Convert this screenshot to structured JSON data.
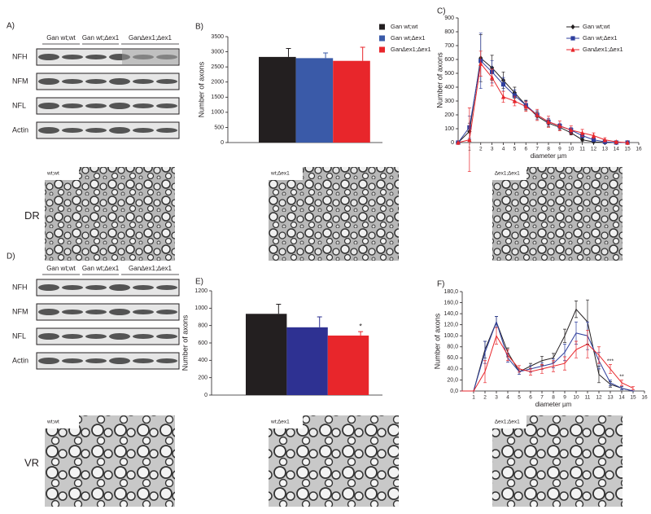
{
  "panels": {
    "blots": [
      {
        "label": "A)",
        "groups": [
          "Gan wt;wt",
          "Gan wt;∆ex1",
          "Gan∆ex1;∆ex1"
        ],
        "rows": [
          "NFH",
          "NFM",
          "NFL",
          "Actin"
        ]
      },
      {
        "label": "D)",
        "groups": [
          "Gan wt;wt",
          "Gan wt;∆ex1",
          "Gan∆ex1;∆ex1"
        ],
        "rows": [
          "NFH",
          "NFM",
          "NFL",
          "Actin"
        ]
      }
    ],
    "micrographs": [
      {
        "label": "DR",
        "images": [
          "wt;wt",
          "wt;∆ex1",
          "∆ex1;∆ex1"
        ]
      },
      {
        "label": "VR",
        "images": [
          "wt;wt",
          "wt;∆ex1",
          "∆ex1;∆ex1"
        ]
      }
    ]
  },
  "chart_data": [
    {
      "type": "bar",
      "label": "B)",
      "ylabel": "Number of axons",
      "categories": [
        null
      ],
      "series": [
        {
          "name": "Gan wt;wt",
          "color": "#231f20",
          "values": [
            2830
          ],
          "errors": [
            280
          ]
        },
        {
          "name": "Gan wt;∆ex1",
          "color": "#3a5aa8",
          "values": [
            2790
          ],
          "errors": [
            170
          ]
        },
        {
          "name": "Gan∆ex1;∆ex1",
          "color": "#e8262b",
          "values": [
            2700
          ],
          "errors": [
            450
          ]
        }
      ],
      "ylim": [
        0,
        3500
      ],
      "yticks": [
        0,
        500,
        1000,
        1500,
        2000,
        2500,
        3000,
        3500
      ],
      "legend": "upper right"
    },
    {
      "type": "line",
      "label": "C)",
      "ylabel": "Number of axons",
      "xlabel": "diameter µm",
      "x": [
        0,
        1,
        2,
        3,
        4,
        5,
        6,
        7,
        8,
        9,
        10,
        11,
        12,
        13,
        14,
        15
      ],
      "series": [
        {
          "name": "Gan wt;wt",
          "color": "#231f20",
          "marker": "diamond",
          "values": [
            0,
            80,
            610,
            540,
            450,
            360,
            270,
            190,
            140,
            110,
            70,
            20,
            5,
            0,
            0,
            0
          ],
          "errors": [
            0,
            60,
            170,
            90,
            60,
            40,
            35,
            30,
            25,
            20,
            15,
            10,
            5,
            0,
            0,
            0
          ]
        },
        {
          "name": "Gan wt;∆ex1",
          "color": "#2e3f9e",
          "marker": "square",
          "values": [
            0,
            110,
            590,
            510,
            420,
            340,
            270,
            200,
            150,
            120,
            90,
            50,
            20,
            5,
            0,
            0
          ],
          "errors": [
            0,
            80,
            200,
            80,
            50,
            40,
            30,
            30,
            25,
            20,
            20,
            15,
            10,
            5,
            0,
            0
          ]
        },
        {
          "name": "Gan∆ex1;∆ex1",
          "color": "#e8262b",
          "marker": "triangle",
          "values": [
            0,
            20,
            570,
            470,
            330,
            300,
            260,
            200,
            150,
            120,
            90,
            70,
            50,
            20,
            5,
            0
          ],
          "errors": [
            0,
            230,
            90,
            60,
            40,
            35,
            35,
            40,
            40,
            35,
            30,
            25,
            20,
            15,
            5,
            0
          ]
        }
      ],
      "xlim": [
        0,
        16
      ],
      "xticks": [
        1,
        2,
        3,
        4,
        5,
        6,
        7,
        8,
        9,
        10,
        11,
        12,
        13,
        14,
        15,
        16
      ],
      "ylim": [
        0,
        900
      ],
      "yticks": [
        0,
        100,
        200,
        300,
        400,
        500,
        600,
        700,
        800,
        900
      ],
      "legend": "upper right"
    },
    {
      "type": "bar",
      "label": "E)",
      "ylabel": "Number of axons",
      "categories": [
        null
      ],
      "series": [
        {
          "color": "#231f20",
          "values": [
            935
          ],
          "errors": [
            110
          ]
        },
        {
          "color": "#2e3192",
          "values": [
            780
          ],
          "errors": [
            120
          ]
        },
        {
          "color": "#e8262b",
          "values": [
            685
          ],
          "errors": [
            45
          ]
        }
      ],
      "annotations": [
        {
          "text": "*",
          "series": 2
        }
      ],
      "ylim": [
        0,
        1200
      ],
      "yticks": [
        0,
        200,
        400,
        600,
        800,
        1000,
        1200
      ]
    },
    {
      "type": "line",
      "label": "F)",
      "ylabel": "Number of axons",
      "xlabel": "diameter µm",
      "x": [
        0,
        1,
        2,
        3,
        4,
        5,
        6,
        7,
        8,
        9,
        10,
        11,
        12,
        13,
        14,
        15
      ],
      "series": [
        {
          "color": "#231f20",
          "marker": "diamond",
          "values": [
            0,
            0,
            75,
            125,
            70,
            35,
            45,
            55,
            60,
            100,
            148,
            125,
            30,
            12,
            5,
            0
          ],
          "errors": [
            0,
            0,
            15,
            10,
            8,
            5,
            5,
            8,
            8,
            12,
            15,
            40,
            15,
            5,
            3,
            0
          ]
        },
        {
          "color": "#2e3f9e",
          "marker": "square",
          "values": [
            0,
            0,
            70,
            125,
            60,
            35,
            40,
            45,
            50,
            70,
            105,
            100,
            55,
            15,
            5,
            0
          ],
          "errors": [
            0,
            0,
            20,
            10,
            8,
            5,
            6,
            6,
            8,
            15,
            20,
            25,
            15,
            5,
            3,
            0
          ]
        },
        {
          "color": "#e8262b",
          "marker": "triangle",
          "values": [
            0,
            0,
            35,
            100,
            65,
            40,
            35,
            40,
            45,
            50,
            75,
            85,
            65,
            40,
            15,
            5
          ],
          "errors": [
            0,
            0,
            20,
            15,
            10,
            6,
            6,
            8,
            10,
            12,
            15,
            25,
            15,
            8,
            5,
            3
          ]
        }
      ],
      "annotations": [
        {
          "text": "***",
          "x": 13
        },
        {
          "text": "**",
          "x": 14
        }
      ],
      "xlim": [
        0,
        16
      ],
      "xticks": [
        1,
        2,
        3,
        4,
        5,
        6,
        7,
        8,
        9,
        10,
        11,
        12,
        13,
        14,
        15,
        16
      ],
      "ylim": [
        0,
        180
      ],
      "yticks": [
        {
          "value": 0,
          "label": "0,0"
        },
        {
          "value": 20,
          "label": "20,0"
        },
        {
          "value": 40,
          "label": "40,0"
        },
        {
          "value": 60,
          "label": "60,0"
        },
        {
          "value": 80,
          "label": "80,0"
        },
        {
          "value": 100,
          "label": "100,0"
        },
        {
          "value": 120,
          "label": "120,0"
        },
        {
          "value": 140,
          "label": "140,0"
        },
        {
          "value": 160,
          "label": "160,0"
        },
        {
          "value": 180,
          "label": "180,0"
        }
      ]
    }
  ]
}
